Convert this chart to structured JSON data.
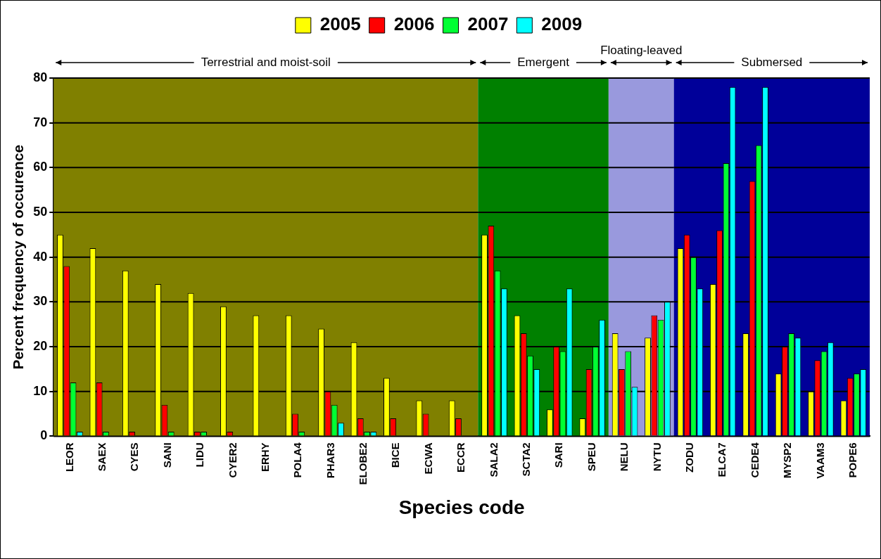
{
  "chart_data": {
    "type": "bar",
    "xlabel": "Species code",
    "ylabel": "Percent frequency of occurence",
    "categories": [
      "LEOR",
      "SAEX",
      "CYES",
      "SANI",
      "LIDU",
      "CYER2",
      "ERHY",
      "POLA4",
      "PHAR3",
      "ELOBE2",
      "BICE",
      "ECWA",
      "ECCR",
      "SALA2",
      "SCTA2",
      "SARI",
      "SPEU",
      "NELU",
      "NYTU",
      "ZODU",
      "ELCA7",
      "CEDE4",
      "MYSP2",
      "VAAM3",
      "POPE6"
    ],
    "series": [
      {
        "name": "2005",
        "color": "#ffff00",
        "values": [
          45,
          42,
          37,
          34,
          32,
          29,
          27,
          27,
          24,
          21,
          13,
          8,
          8,
          45,
          27,
          6,
          4,
          23,
          22,
          42,
          34,
          23,
          14,
          10,
          8
        ]
      },
      {
        "name": "2006",
        "color": "#ff0000",
        "values": [
          38,
          12,
          1,
          7,
          1,
          1,
          0,
          5,
          10,
          4,
          4,
          5,
          4,
          47,
          23,
          20,
          15,
          15,
          27,
          45,
          46,
          57,
          20,
          17,
          13
        ]
      },
      {
        "name": "2007",
        "color": "#00ff33",
        "values": [
          12,
          1,
          0,
          1,
          1,
          0,
          0,
          1,
          7,
          1,
          0,
          0,
          0,
          37,
          18,
          19,
          20,
          19,
          26,
          40,
          61,
          65,
          23,
          19,
          14
        ]
      },
      {
        "name": "2009",
        "color": "#00ffff",
        "values": [
          1,
          0,
          0,
          0,
          0,
          0,
          0,
          0,
          3,
          1,
          0,
          0,
          0,
          33,
          15,
          33,
          26,
          11,
          30,
          33,
          78,
          78,
          22,
          21,
          15
        ]
      }
    ],
    "ylim": [
      0,
      80
    ],
    "yticks": [
      0,
      10,
      20,
      30,
      40,
      50,
      60,
      70,
      80
    ],
    "grid": "y",
    "legend": "top",
    "bands": [
      {
        "axis": "x",
        "from": "LEOR",
        "to": "ECCR",
        "label": "Terrestrial and moist-soil",
        "color": "#808000"
      },
      {
        "axis": "x",
        "from": "SALA2",
        "to": "SPEU",
        "label": "Emergent",
        "color": "#008000"
      },
      {
        "axis": "x",
        "from": "NELU",
        "to": "NYTU",
        "label": "Floating-leaved",
        "color": "#9999dd"
      },
      {
        "axis": "x",
        "from": "ZODU",
        "to": "POPE6",
        "label": "Submersed",
        "color": "#000099"
      }
    ]
  }
}
